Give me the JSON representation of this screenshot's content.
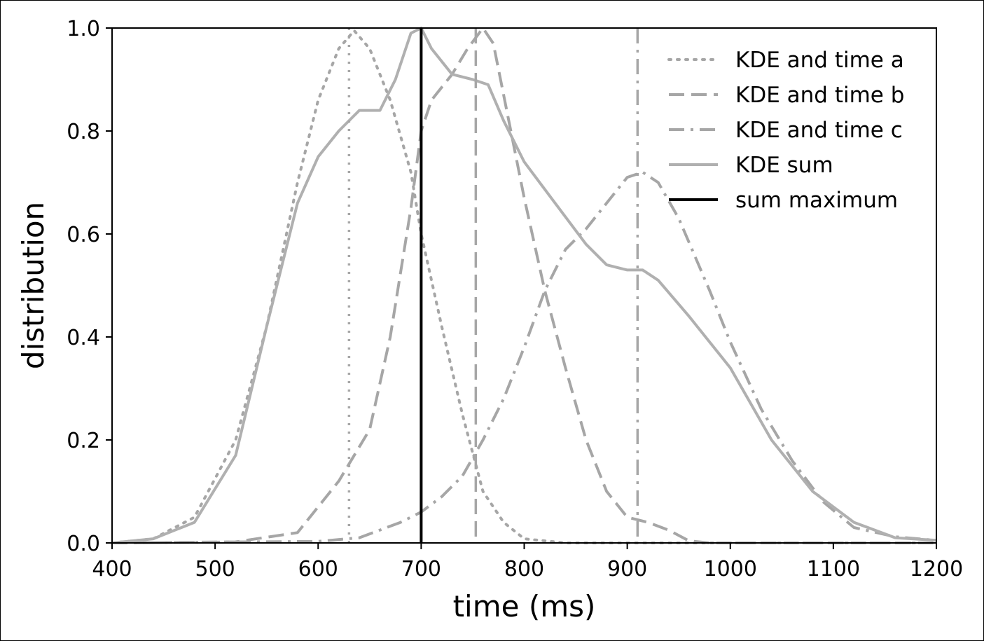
{
  "chart_data": {
    "type": "line",
    "title": "",
    "xlabel": "time (ms)",
    "ylabel": "distribution",
    "xlim": [
      400,
      1200
    ],
    "ylim": [
      0,
      1.0
    ],
    "xticks": [
      400,
      500,
      600,
      700,
      800,
      900,
      1000,
      1100,
      1200
    ],
    "yticks": [
      0.0,
      0.2,
      0.4,
      0.6,
      0.8,
      1.0
    ],
    "xtick_labels": [
      "400",
      "500",
      "600",
      "700",
      "800",
      "900",
      "1000",
      "1100",
      "1200"
    ],
    "ytick_labels": [
      "0.0",
      "0.2",
      "0.4",
      "0.6",
      "0.8",
      "1.0"
    ],
    "grid": false,
    "legend_position": "top-right",
    "series": [
      {
        "name": "KDE and time a",
        "style": "dotted",
        "color": "#a6a6a6",
        "marker_time": 630,
        "points": [
          [
            400,
            0
          ],
          [
            440,
            0.008
          ],
          [
            480,
            0.05
          ],
          [
            520,
            0.2
          ],
          [
            550,
            0.42
          ],
          [
            580,
            0.7
          ],
          [
            600,
            0.86
          ],
          [
            620,
            0.96
          ],
          [
            635,
            0.995
          ],
          [
            650,
            0.96
          ],
          [
            670,
            0.86
          ],
          [
            690,
            0.72
          ],
          [
            700,
            0.6
          ],
          [
            720,
            0.42
          ],
          [
            740,
            0.25
          ],
          [
            760,
            0.1
          ],
          [
            780,
            0.04
          ],
          [
            800,
            0.008
          ],
          [
            840,
            0
          ],
          [
            1200,
            0
          ]
        ]
      },
      {
        "name": "KDE and time b",
        "style": "dashed",
        "color": "#a6a6a6",
        "marker_time": 753,
        "points": [
          [
            400,
            0
          ],
          [
            520,
            0.002
          ],
          [
            580,
            0.02
          ],
          [
            620,
            0.12
          ],
          [
            650,
            0.22
          ],
          [
            670,
            0.4
          ],
          [
            690,
            0.65
          ],
          [
            700,
            0.8
          ],
          [
            710,
            0.86
          ],
          [
            730,
            0.91
          ],
          [
            745,
            0.96
          ],
          [
            760,
            1.0
          ],
          [
            770,
            0.97
          ],
          [
            780,
            0.87
          ],
          [
            800,
            0.67
          ],
          [
            820,
            0.49
          ],
          [
            840,
            0.34
          ],
          [
            860,
            0.2
          ],
          [
            880,
            0.1
          ],
          [
            900,
            0.05
          ],
          [
            920,
            0.04
          ],
          [
            940,
            0.025
          ],
          [
            960,
            0.004
          ],
          [
            980,
            0
          ],
          [
            1200,
            0
          ]
        ]
      },
      {
        "name": "KDE and time c",
        "style": "dashdot",
        "color": "#a6a6a6",
        "marker_time": 910,
        "points": [
          [
            400,
            0
          ],
          [
            600,
            0.003
          ],
          [
            640,
            0.01
          ],
          [
            680,
            0.04
          ],
          [
            700,
            0.06
          ],
          [
            720,
            0.09
          ],
          [
            740,
            0.13
          ],
          [
            760,
            0.2
          ],
          [
            780,
            0.28
          ],
          [
            800,
            0.38
          ],
          [
            820,
            0.49
          ],
          [
            840,
            0.57
          ],
          [
            860,
            0.61
          ],
          [
            880,
            0.66
          ],
          [
            900,
            0.71
          ],
          [
            915,
            0.72
          ],
          [
            930,
            0.7
          ],
          [
            950,
            0.63
          ],
          [
            980,
            0.49
          ],
          [
            1000,
            0.39
          ],
          [
            1030,
            0.26
          ],
          [
            1060,
            0.16
          ],
          [
            1090,
            0.08
          ],
          [
            1120,
            0.03
          ],
          [
            1160,
            0.012
          ],
          [
            1200,
            0.005
          ]
        ]
      },
      {
        "name": "KDE sum",
        "style": "solid",
        "color": "#b0b0b0",
        "points": [
          [
            400,
            0
          ],
          [
            440,
            0.008
          ],
          [
            480,
            0.04
          ],
          [
            520,
            0.17
          ],
          [
            550,
            0.42
          ],
          [
            580,
            0.66
          ],
          [
            600,
            0.75
          ],
          [
            620,
            0.8
          ],
          [
            640,
            0.84
          ],
          [
            660,
            0.84
          ],
          [
            675,
            0.9
          ],
          [
            690,
            0.99
          ],
          [
            700,
            1.0
          ],
          [
            710,
            0.96
          ],
          [
            730,
            0.91
          ],
          [
            750,
            0.9
          ],
          [
            765,
            0.89
          ],
          [
            780,
            0.82
          ],
          [
            800,
            0.74
          ],
          [
            830,
            0.66
          ],
          [
            860,
            0.58
          ],
          [
            880,
            0.54
          ],
          [
            900,
            0.53
          ],
          [
            915,
            0.53
          ],
          [
            930,
            0.51
          ],
          [
            960,
            0.44
          ],
          [
            1000,
            0.34
          ],
          [
            1040,
            0.2
          ],
          [
            1080,
            0.1
          ],
          [
            1120,
            0.04
          ],
          [
            1160,
            0.01
          ],
          [
            1200,
            0.005
          ]
        ]
      },
      {
        "name": "sum maximum",
        "style": "solid",
        "color": "#000000",
        "marker_time": 700
      }
    ]
  }
}
